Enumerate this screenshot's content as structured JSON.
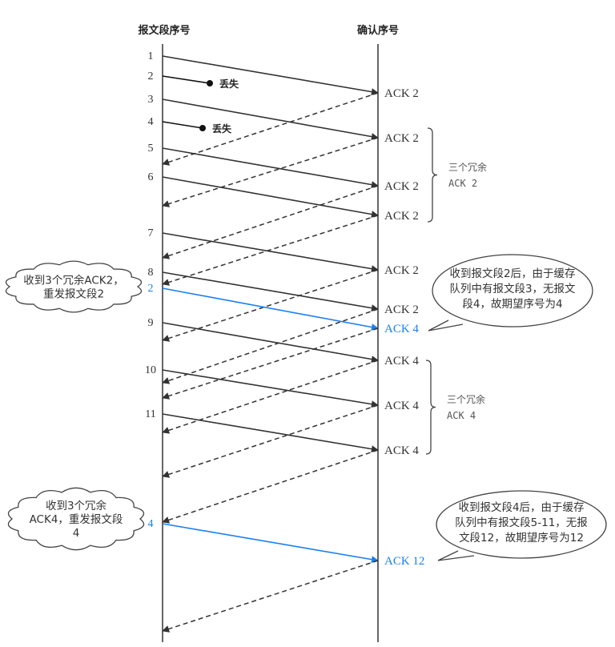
{
  "headers": {
    "sender": "报文段序号",
    "receiver": "确认序号"
  },
  "colors": {
    "line": "#333333",
    "retransmit": "#1a7ff0",
    "bubble_stroke": "#444444"
  },
  "segments": [
    {
      "label": "1",
      "ack": "ACK 2"
    },
    {
      "label": "2",
      "lost": "丢失"
    },
    {
      "label": "3",
      "ack": "ACK 2"
    },
    {
      "label": "4",
      "lost": "丢失"
    },
    {
      "label": "5",
      "ack": "ACK 2"
    },
    {
      "label": "6",
      "ack": "ACK 2"
    },
    {
      "label": "7",
      "ack": "ACK 2"
    },
    {
      "label": "8",
      "ack": "ACK 2"
    },
    {
      "label": "2",
      "ack": "ACK 4",
      "retransmit": true
    },
    {
      "label": "9",
      "ack": "ACK 4"
    },
    {
      "label": "10",
      "ack": "ACK 4"
    },
    {
      "label": "11",
      "ack": "ACK 4"
    },
    {
      "label": "4",
      "ack": "ACK 12",
      "retransmit": true
    }
  ],
  "braces": [
    {
      "line1": "三个冗余",
      "line2": "ACK  2"
    },
    {
      "line1": "三个冗余",
      "line2": "ACK  4"
    }
  ],
  "clouds": [
    {
      "lines": [
        "收到3个冗余ACK2，",
        "重发报文段2"
      ]
    },
    {
      "lines": [
        "收到3个冗余",
        "ACK4，重发报文段",
        "4"
      ]
    }
  ],
  "bubbles": [
    {
      "lines": [
        "收到报文段2后，由于缓存",
        "队列中有报文段3，无报文",
        "段4，故期望序号为4"
      ]
    },
    {
      "lines": [
        "收到报文段4后，由于缓存",
        "队列中有报文段5-11，无报",
        "文段12，故期望序号为12"
      ]
    }
  ]
}
